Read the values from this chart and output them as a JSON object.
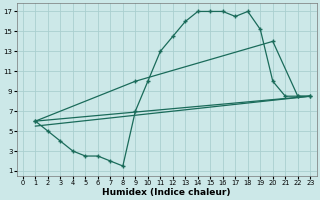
{
  "xlabel": "Humidex (Indice chaleur)",
  "bg_color": "#cce8e8",
  "grid_color": "#aacfcf",
  "line_color": "#1a6b5a",
  "xlim": [
    -0.5,
    23.5
  ],
  "ylim": [
    0.5,
    17.8
  ],
  "xticks": [
    0,
    1,
    2,
    3,
    4,
    5,
    6,
    7,
    8,
    9,
    10,
    11,
    12,
    13,
    14,
    15,
    16,
    17,
    18,
    19,
    20,
    21,
    22,
    23
  ],
  "yticks": [
    1,
    3,
    5,
    7,
    9,
    11,
    13,
    15,
    17
  ],
  "curve1_x": [
    1,
    2,
    3,
    4,
    5,
    6,
    7,
    8,
    9,
    10,
    11,
    12,
    13,
    14,
    15,
    16,
    17,
    18,
    19,
    20,
    21,
    22,
    23
  ],
  "curve1_y": [
    6,
    5,
    4,
    3,
    2.5,
    2.5,
    2,
    1.5,
    7,
    10,
    13,
    14.5,
    16,
    17,
    17,
    17,
    16.5,
    17,
    15.2,
    10,
    8.5,
    8.5,
    8.5
  ],
  "curve2_x": [
    1,
    9,
    20,
    22,
    23
  ],
  "curve2_y": [
    6,
    10,
    14,
    8.5,
    8.5
  ],
  "line3_x": [
    1,
    23
  ],
  "line3_y": [
    6,
    8.5
  ],
  "line4_x": [
    1,
    23
  ],
  "line4_y": [
    5.5,
    8.5
  ]
}
